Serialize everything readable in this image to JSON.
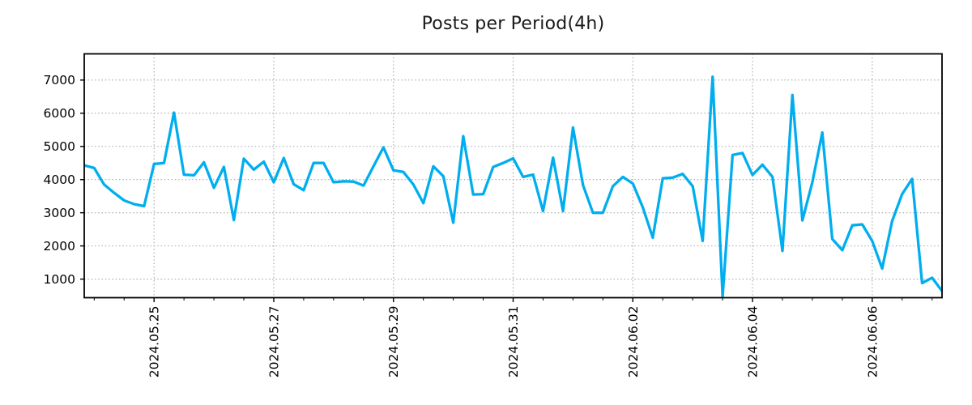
{
  "title": "Posts per Period(4h)",
  "chart_data": {
    "type": "line",
    "title": "Posts per Period(4h)",
    "period_label": "4h",
    "x_start": "2024-05-23 20:00",
    "interval_hours": 4,
    "x_tick_labels": [
      "2024.05.25",
      "2024.05.27",
      "2024.05.29",
      "2024.05.31",
      "2024.06.02",
      "2024.06.04",
      "2024.06.06"
    ],
    "x_tick_indices": [
      7,
      19,
      31,
      43,
      55,
      67,
      79
    ],
    "minor_tick_every_hours": 12,
    "y_ticks": [
      1000,
      2000,
      3000,
      4000,
      5000,
      6000,
      7000
    ],
    "ylim": [
      440,
      7790
    ],
    "grid": true,
    "legend": "none",
    "line_color": "#00aeef",
    "grid_color": "#a6a6a6",
    "axis_color": "#000000",
    "background_color": "#ffffff",
    "values": [
      4430,
      4350,
      3850,
      3600,
      3370,
      3260,
      3200,
      4470,
      4500,
      6020,
      4150,
      4130,
      4520,
      3750,
      4380,
      2780,
      4630,
      4300,
      4540,
      3920,
      4650,
      3860,
      3680,
      4500,
      4500,
      3920,
      3950,
      3940,
      3820,
      4400,
      4970,
      4280,
      4230,
      3850,
      3290,
      4400,
      4100,
      2700,
      5310,
      3550,
      3560,
      4380,
      4500,
      4640,
      4080,
      4150,
      3050,
      4660,
      3050,
      5570,
      3840,
      3000,
      3000,
      3800,
      4080,
      3880,
      3160,
      2250,
      4040,
      4060,
      4170,
      3800,
      2150,
      7100,
      480,
      4740,
      4800,
      4140,
      4450,
      4080,
      1850,
      6550,
      2770,
      3920,
      5420,
      2210,
      1870,
      2620,
      2650,
      2150,
      1320,
      2750,
      3560,
      4020,
      880,
      1040,
      640
    ]
  }
}
